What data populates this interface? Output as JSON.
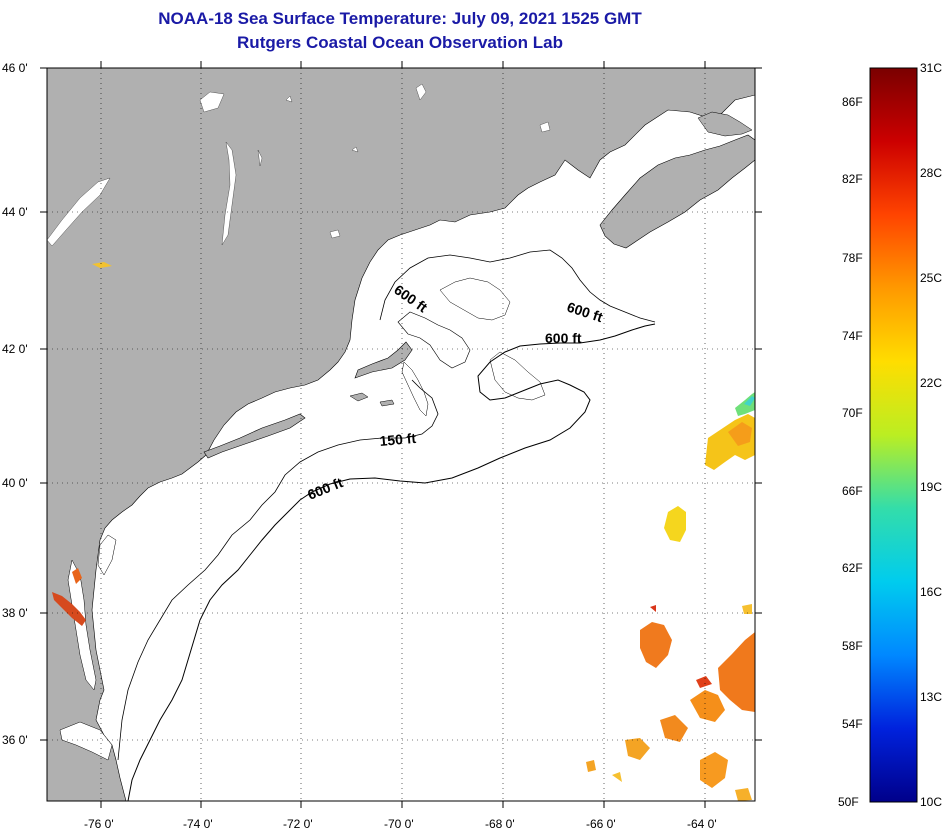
{
  "title": {
    "line1": "NOAA-18 Sea Surface Temperature:  July 09, 2021 1525 GMT",
    "line2": "Rutgers Coastal Ocean Observation Lab"
  },
  "map": {
    "lat_labels": [
      "46 0'",
      "44 0'",
      "42 0'",
      "40 0'",
      "38 0'",
      "36 0'"
    ],
    "lon_labels": [
      "-76 0'",
      "-74 0'",
      "-72 0'",
      "-70 0'",
      "-68 0'",
      "-66 0'",
      "-64 0'"
    ],
    "contour_labels": [
      "600 ft",
      "600 ft",
      "600 ft",
      "150 ft",
      "600 ft"
    ]
  },
  "colorbar": {
    "fahrenheit": [
      "86F",
      "82F",
      "78F",
      "74F",
      "70F",
      "66F",
      "62F",
      "58F",
      "54F",
      "50F"
    ],
    "celsius": [
      "31C",
      "28C",
      "25C",
      "22C",
      "19C",
      "16C",
      "13C",
      "10C"
    ]
  },
  "colors": {
    "land": "#b0b0b0",
    "title": "#1a1aa6",
    "gradient": [
      "#7a0000",
      "#cc0000",
      "#ff4400",
      "#ff9900",
      "#ffdd00",
      "#bbee22",
      "#33ddaa",
      "#00ccee",
      "#0088ff",
      "#0022dd",
      "#00008a"
    ]
  }
}
